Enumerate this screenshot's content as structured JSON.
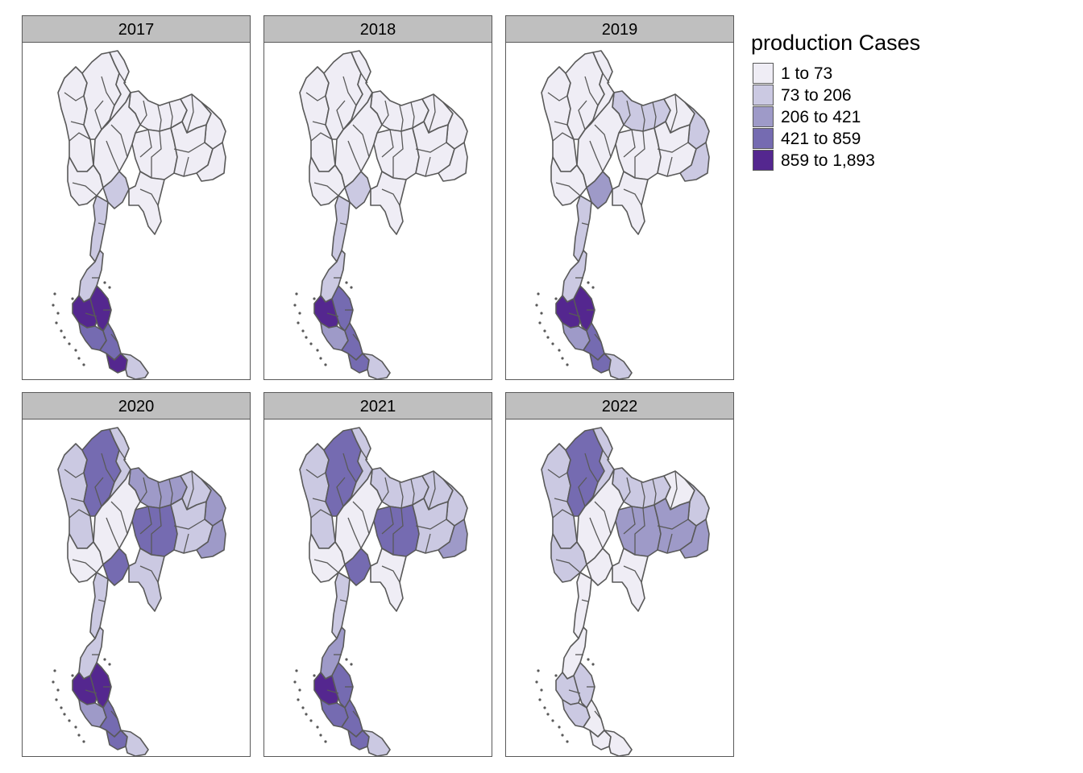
{
  "map": {
    "panels": [
      {
        "year": "2017",
        "fills": {
          "n1": "#efedf5",
          "n2": "#efedf5",
          "n3": "#efedf5",
          "e1": "#efedf5",
          "e2": "#efedf5",
          "e3": "#efedf5",
          "e4": "#efedf5",
          "e5": "#efedf5",
          "e6": "#efedf5",
          "c1": "#efedf5",
          "c2": "#efedf5",
          "c3": "#cbc9e2",
          "c4": "#efedf5",
          "s1": "#cbc9e2",
          "s2": "#cbc9e2",
          "s3": "#54278f",
          "s4": "#54278f",
          "s5": "#756bb1",
          "s6": "#756bb1",
          "s7": "#54278f",
          "s8": "#cbc9e2"
        }
      },
      {
        "year": "2018",
        "fills": {
          "n1": "#efedf5",
          "n2": "#efedf5",
          "n3": "#efedf5",
          "e1": "#efedf5",
          "e2": "#efedf5",
          "e3": "#efedf5",
          "e4": "#efedf5",
          "e5": "#efedf5",
          "e6": "#efedf5",
          "c1": "#efedf5",
          "c2": "#efedf5",
          "c3": "#cbc9e2",
          "c4": "#efedf5",
          "s1": "#cbc9e2",
          "s2": "#cbc9e2",
          "s3": "#54278f",
          "s4": "#756bb1",
          "s5": "#9e9ac8",
          "s6": "#756bb1",
          "s7": "#756bb1",
          "s8": "#cbc9e2"
        }
      },
      {
        "year": "2019",
        "fills": {
          "n1": "#efedf5",
          "n2": "#efedf5",
          "n3": "#efedf5",
          "e1": "#cbc9e2",
          "e2": "#efedf5",
          "e3": "#cbc9e2",
          "e4": "#efedf5",
          "e5": "#efedf5",
          "e6": "#cbc9e2",
          "c1": "#efedf5",
          "c2": "#efedf5",
          "c3": "#9e9ac8",
          "c4": "#efedf5",
          "s1": "#cbc9e2",
          "s2": "#cbc9e2",
          "s3": "#54278f",
          "s4": "#54278f",
          "s5": "#9e9ac8",
          "s6": "#756bb1",
          "s7": "#756bb1",
          "s8": "#cbc9e2"
        }
      },
      {
        "year": "2020",
        "fills": {
          "n1": "#cbc9e2",
          "n2": "#756bb1",
          "n3": "#cbc9e2",
          "e1": "#9e9ac8",
          "e2": "#cbc9e2",
          "e3": "#9e9ac8",
          "e4": "#756bb1",
          "e5": "#cbc9e2",
          "e6": "#9e9ac8",
          "c1": "#efedf5",
          "c2": "#efedf5",
          "c3": "#756bb1",
          "c4": "#cbc9e2",
          "s1": "#cbc9e2",
          "s2": "#cbc9e2",
          "s3": "#54278f",
          "s4": "#54278f",
          "s5": "#9e9ac8",
          "s6": "#756bb1",
          "s7": "#756bb1",
          "s8": "#cbc9e2"
        }
      },
      {
        "year": "2021",
        "fills": {
          "n1": "#cbc9e2",
          "n2": "#756bb1",
          "n3": "#cbc9e2",
          "e1": "#cbc9e2",
          "e2": "#cbc9e2",
          "e3": "#cbc9e2",
          "e4": "#756bb1",
          "e5": "#cbc9e2",
          "e6": "#9e9ac8",
          "c1": "#efedf5",
          "c2": "#efedf5",
          "c3": "#756bb1",
          "c4": "#efedf5",
          "s1": "#cbc9e2",
          "s2": "#9e9ac8",
          "s3": "#54278f",
          "s4": "#756bb1",
          "s5": "#756bb1",
          "s6": "#756bb1",
          "s7": "#756bb1",
          "s8": "#cbc9e2"
        }
      },
      {
        "year": "2022",
        "fills": {
          "n1": "#cbc9e2",
          "n2": "#756bb1",
          "n3": "#cbc9e2",
          "e1": "#cbc9e2",
          "e2": "#efedf5",
          "e3": "#cbc9e2",
          "e4": "#9e9ac8",
          "e5": "#9e9ac8",
          "e6": "#9e9ac8",
          "c1": "#cbc9e2",
          "c2": "#efedf5",
          "c3": "#efedf5",
          "c4": "#efedf5",
          "s1": "#efedf5",
          "s2": "#efedf5",
          "s3": "#cbc9e2",
          "s4": "#cbc9e2",
          "s5": "#cbc9e2",
          "s6": "#efedf5",
          "s7": "#efedf5",
          "s8": "#efedf5"
        }
      }
    ],
    "legend": {
      "title": "production Cases",
      "items": [
        {
          "label": "1 to 73",
          "color": "#efedf5"
        },
        {
          "label": "73 to 206",
          "color": "#cbc9e2"
        },
        {
          "label": "206 to 421",
          "color": "#9e9ac8"
        },
        {
          "label": "421 to 859",
          "color": "#756bb1"
        },
        {
          "label": "859 to 1,893",
          "color": "#54278f"
        }
      ]
    }
  }
}
